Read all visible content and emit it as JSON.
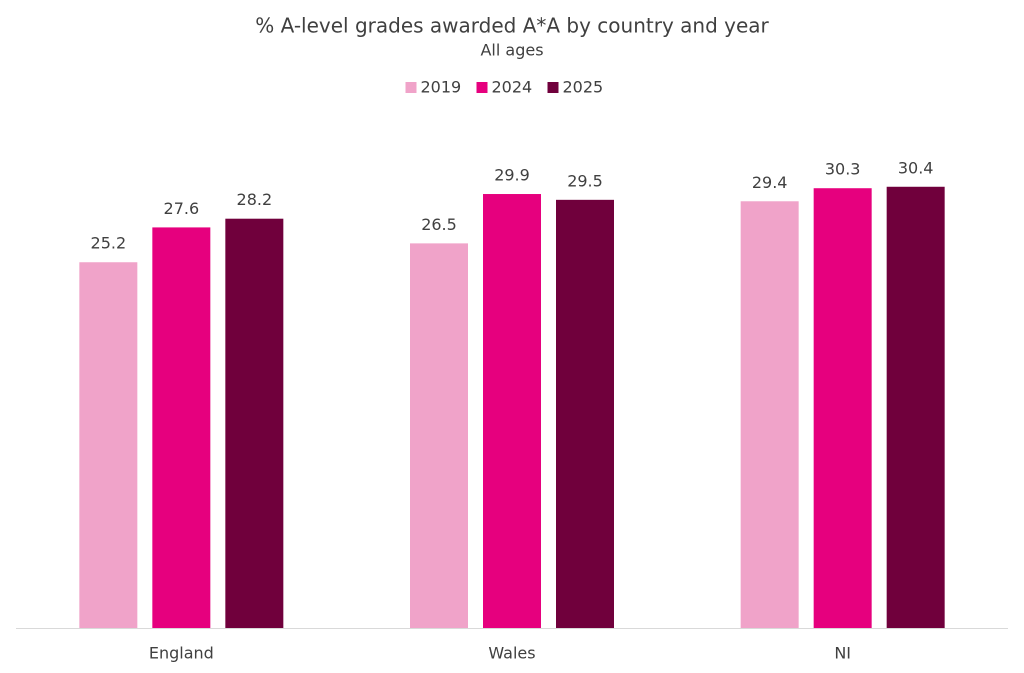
{
  "chart_data": {
    "type": "bar",
    "title": "% A-level grades awarded A*A by country and year",
    "subtitle": "All ages",
    "categories": [
      "England",
      "Wales",
      "NI"
    ],
    "series": [
      {
        "name": "2019",
        "color": "#f0a3c9",
        "values": [
          25.2,
          26.5,
          29.4
        ]
      },
      {
        "name": "2024",
        "color": "#e6007e",
        "values": [
          27.6,
          29.9,
          30.3
        ]
      },
      {
        "name": "2025",
        "color": "#70003c",
        "values": [
          28.2,
          29.5,
          30.4
        ]
      }
    ],
    "ylim": [
      0,
      35
    ],
    "legend": "top",
    "data_labels": true
  }
}
